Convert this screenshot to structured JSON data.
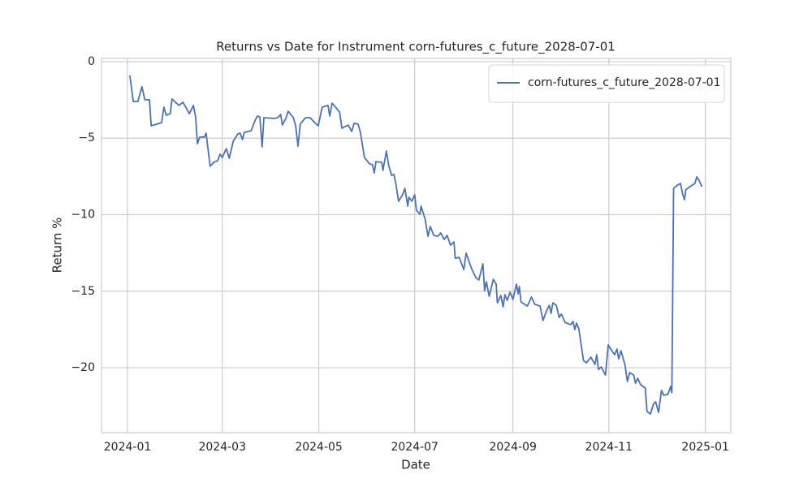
{
  "chart_data": {
    "type": "line",
    "title": "Returns vs Date for Instrument corn-futures_c_future_2028-07-01",
    "x_label": "Date",
    "y_label": "Return %",
    "grid": true,
    "legend": "upper right",
    "xlim": [
      2023.955,
      2025.044
    ],
    "xticks": [
      {
        "value": 2024.0,
        "label": "2024-01"
      },
      {
        "value": 2024.164,
        "label": "2024-03"
      },
      {
        "value": 2024.331,
        "label": "2024-05"
      },
      {
        "value": 2024.497,
        "label": "2024-07"
      },
      {
        "value": 2024.667,
        "label": "2024-09"
      },
      {
        "value": 2024.833,
        "label": "2024-11"
      },
      {
        "value": 2025.0,
        "label": "2025-01"
      }
    ],
    "ylim": [
      -24.24,
      0.21
    ],
    "yticks": [
      {
        "value": -20,
        "label": "−20"
      },
      {
        "value": -15,
        "label": "−15"
      },
      {
        "value": -10,
        "label": "−10"
      },
      {
        "value": -5,
        "label": "−5"
      },
      0
    ],
    "x": [
      2024.004,
      2024.01,
      2024.018,
      2024.025,
      2024.03,
      2024.038,
      2024.041,
      2024.051,
      2024.059,
      2024.063,
      2024.067,
      2024.074,
      2024.077,
      2024.083,
      2024.089,
      2024.096,
      2024.107,
      2024.114,
      2024.118,
      2024.121,
      2024.125,
      2024.133,
      2024.136,
      2024.143,
      2024.149,
      2024.156,
      2024.16,
      2024.164,
      2024.171,
      2024.176,
      2024.183,
      2024.191,
      2024.195,
      2024.199,
      2024.202,
      2024.214,
      2024.221,
      2024.225,
      2024.229,
      2024.233,
      2024.236,
      2024.253,
      2024.26,
      2024.265,
      2024.268,
      2024.274,
      2024.278,
      2024.287,
      2024.291,
      2024.295,
      2024.299,
      2024.308,
      2024.316,
      2024.324,
      2024.33,
      2024.337,
      2024.347,
      2024.35,
      2024.354,
      2024.367,
      2024.371,
      2024.382,
      2024.388,
      2024.392,
      2024.399,
      2024.403,
      2024.41,
      2024.419,
      2024.424,
      2024.427,
      2024.43,
      2024.44,
      2024.442,
      2024.448,
      2024.452,
      2024.457,
      2024.461,
      2024.464,
      2024.469,
      2024.476,
      2024.48,
      2024.485,
      2024.487,
      2024.492,
      2024.497,
      2024.5,
      2024.506,
      2024.508,
      2024.515,
      2024.52,
      2024.524,
      2024.53,
      2024.537,
      2024.542,
      2024.548,
      2024.553,
      2024.559,
      2024.565,
      2024.567,
      2024.574,
      2024.582,
      2024.586,
      2024.596,
      2024.603,
      2024.608,
      2024.615,
      2024.618,
      2024.621,
      2024.626,
      2024.633,
      2024.638,
      2024.64,
      2024.646,
      2024.65,
      2024.653,
      2024.657,
      2024.662,
      2024.667,
      2024.673,
      2024.676,
      2024.678,
      2024.681,
      2024.692,
      2024.699,
      2024.705,
      2024.714,
      2024.719,
      2024.725,
      2024.73,
      2024.733,
      2024.736,
      2024.742,
      2024.747,
      2024.751,
      2024.757,
      2024.767,
      2024.771,
      2024.774,
      2024.777,
      2024.781,
      2024.789,
      2024.794,
      2024.802,
      2024.809,
      2024.812,
      2024.815,
      2024.82,
      2024.827,
      2024.832,
      2024.839,
      2024.843,
      2024.847,
      2024.85,
      2024.854,
      2024.861,
      2024.865,
      2024.869,
      2024.876,
      2024.879,
      2024.883,
      2024.888,
      2024.896,
      2024.899,
      2024.905,
      2024.91,
      2024.914,
      2024.919,
      2024.924,
      2024.928,
      2024.935,
      2024.94,
      2024.942,
      2024.945,
      2024.952,
      2024.957,
      2024.961,
      2024.964,
      2024.966,
      2024.973,
      2024.982,
      2024.985,
      2024.989,
      2024.994
    ],
    "series": [
      {
        "name": "corn-futures_c_future_2028-07-01",
        "color": "#4c72b0",
        "values": [
          -0.9,
          -2.6,
          -2.6,
          -1.64,
          -2.49,
          -2.49,
          -4.19,
          -4.08,
          -3.98,
          -2.97,
          -3.5,
          -3.4,
          -2.44,
          -2.65,
          -2.86,
          -2.65,
          -3.4,
          -2.86,
          -3.66,
          -5.36,
          -4.93,
          -4.93,
          -4.67,
          -6.84,
          -6.58,
          -6.47,
          -6.05,
          -6.26,
          -5.68,
          -6.31,
          -5.2,
          -4.72,
          -4.67,
          -5.09,
          -4.62,
          -4.51,
          -3.82,
          -3.55,
          -3.61,
          -5.57,
          -3.66,
          -3.71,
          -3.66,
          -3.45,
          -4.14,
          -3.71,
          -3.24,
          -3.66,
          -4.19,
          -5.52,
          -4.08,
          -3.66,
          -3.66,
          -3.98,
          -4.19,
          -2.97,
          -2.86,
          -3.55,
          -2.71,
          -3.29,
          -4.35,
          -4.14,
          -4.56,
          -4.03,
          -4.08,
          -4.62,
          -6.26,
          -6.68,
          -6.74,
          -7.27,
          -6.53,
          -6.58,
          -7.11,
          -5.84,
          -6.79,
          -7.43,
          -7.37,
          -7.9,
          -9.12,
          -8.7,
          -8.28,
          -9.44,
          -8.86,
          -9.12,
          -8.7,
          -9.71,
          -9.97,
          -9.44,
          -10.29,
          -11.41,
          -10.77,
          -11.35,
          -11.41,
          -11.19,
          -11.62,
          -11.35,
          -11.99,
          -11.78,
          -12.84,
          -12.79,
          -13.58,
          -12.52,
          -13.58,
          -14.11,
          -14.27,
          -13.21,
          -14.96,
          -14.38,
          -15.33,
          -14.22,
          -14.54,
          -15.76,
          -15.28,
          -16.02,
          -15.23,
          -15.6,
          -15.07,
          -15.54,
          -14.54,
          -15.17,
          -14.69,
          -15.7,
          -15.97,
          -15.38,
          -15.86,
          -15.97,
          -16.92,
          -16.29,
          -15.92,
          -16.45,
          -15.76,
          -15.92,
          -16.71,
          -16.5,
          -17.03,
          -17.19,
          -16.98,
          -17.51,
          -17.08,
          -17.45,
          -19.52,
          -19.68,
          -19.31,
          -19.79,
          -19.15,
          -20.11,
          -19.95,
          -20.48,
          -18.51,
          -18.94,
          -19.15,
          -18.78,
          -19.42,
          -18.89,
          -19.84,
          -20.9,
          -20.32,
          -20.48,
          -21.01,
          -20.69,
          -21.11,
          -21.33,
          -22.86,
          -23.02,
          -22.39,
          -22.23,
          -22.92,
          -21.48,
          -21.8,
          -21.75,
          -21.22,
          -21.64,
          -8.28,
          -8.06,
          -7.96,
          -8.7,
          -9.02,
          -8.38,
          -8.17,
          -7.96,
          -7.53,
          -7.75,
          -8.17
        ]
      }
    ]
  }
}
